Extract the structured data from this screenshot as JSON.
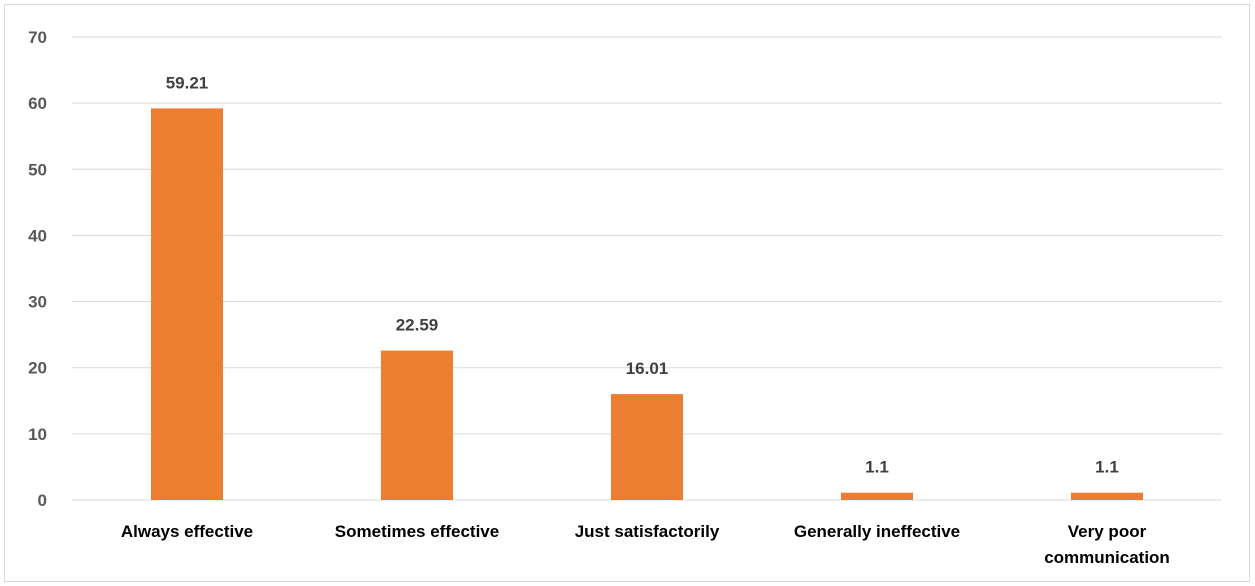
{
  "chart_data": {
    "type": "bar",
    "categories": [
      [
        "Always effective"
      ],
      [
        "Sometimes effective"
      ],
      [
        "Just satisfactorily"
      ],
      [
        "Generally ineffective"
      ],
      [
        "Very poor",
        "communication"
      ]
    ],
    "values": [
      59.21,
      22.59,
      16.01,
      1.1,
      1.1
    ],
    "data_labels": [
      "59.21",
      "22.59",
      "16.01",
      "1.1",
      "1.1"
    ],
    "ylim": [
      0,
      70
    ],
    "yticks": [
      0,
      10,
      20,
      30,
      40,
      50,
      60,
      70
    ],
    "title": "",
    "xlabel": "",
    "ylabel": "",
    "grid": true,
    "legend": "none",
    "bar_color": "#ED7D31",
    "grid_color": "#D9D9D9"
  }
}
